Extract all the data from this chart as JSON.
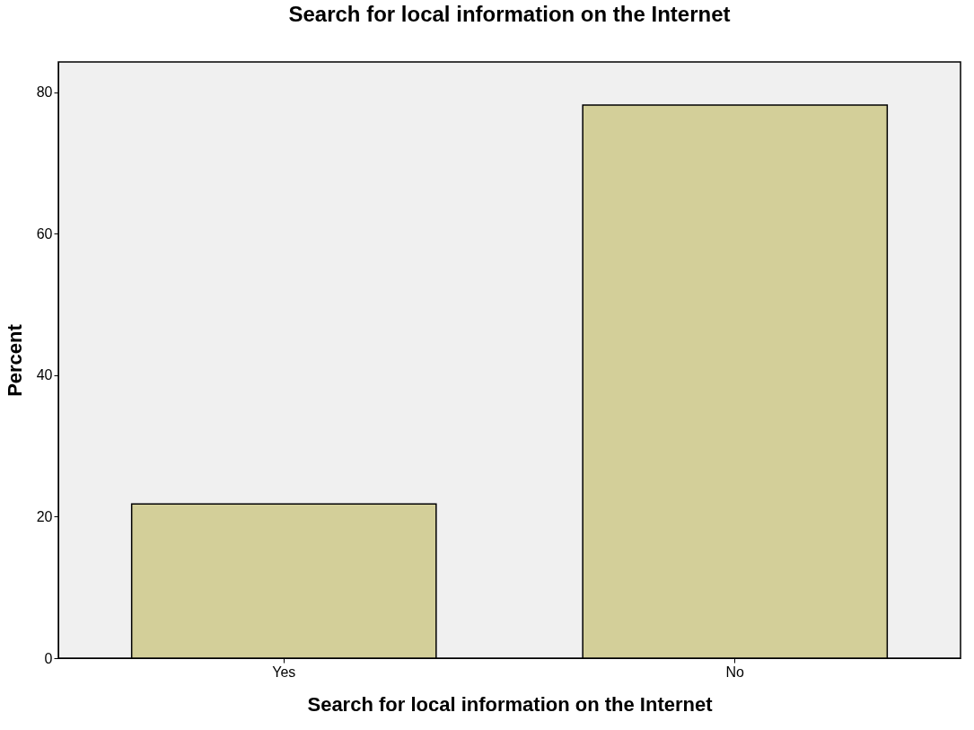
{
  "chart_data": {
    "type": "bar",
    "title": "Search for local information on the Internet",
    "xlabel": "Search for local information on the Internet",
    "ylabel": "Percent",
    "categories": [
      "Yes",
      "No"
    ],
    "values": [
      21.8,
      78.2
    ],
    "color": "#d3cf99",
    "ylim": [
      0,
      84.3
    ],
    "yticks": [
      0,
      20,
      40,
      60,
      80
    ],
    "grid": false
  }
}
